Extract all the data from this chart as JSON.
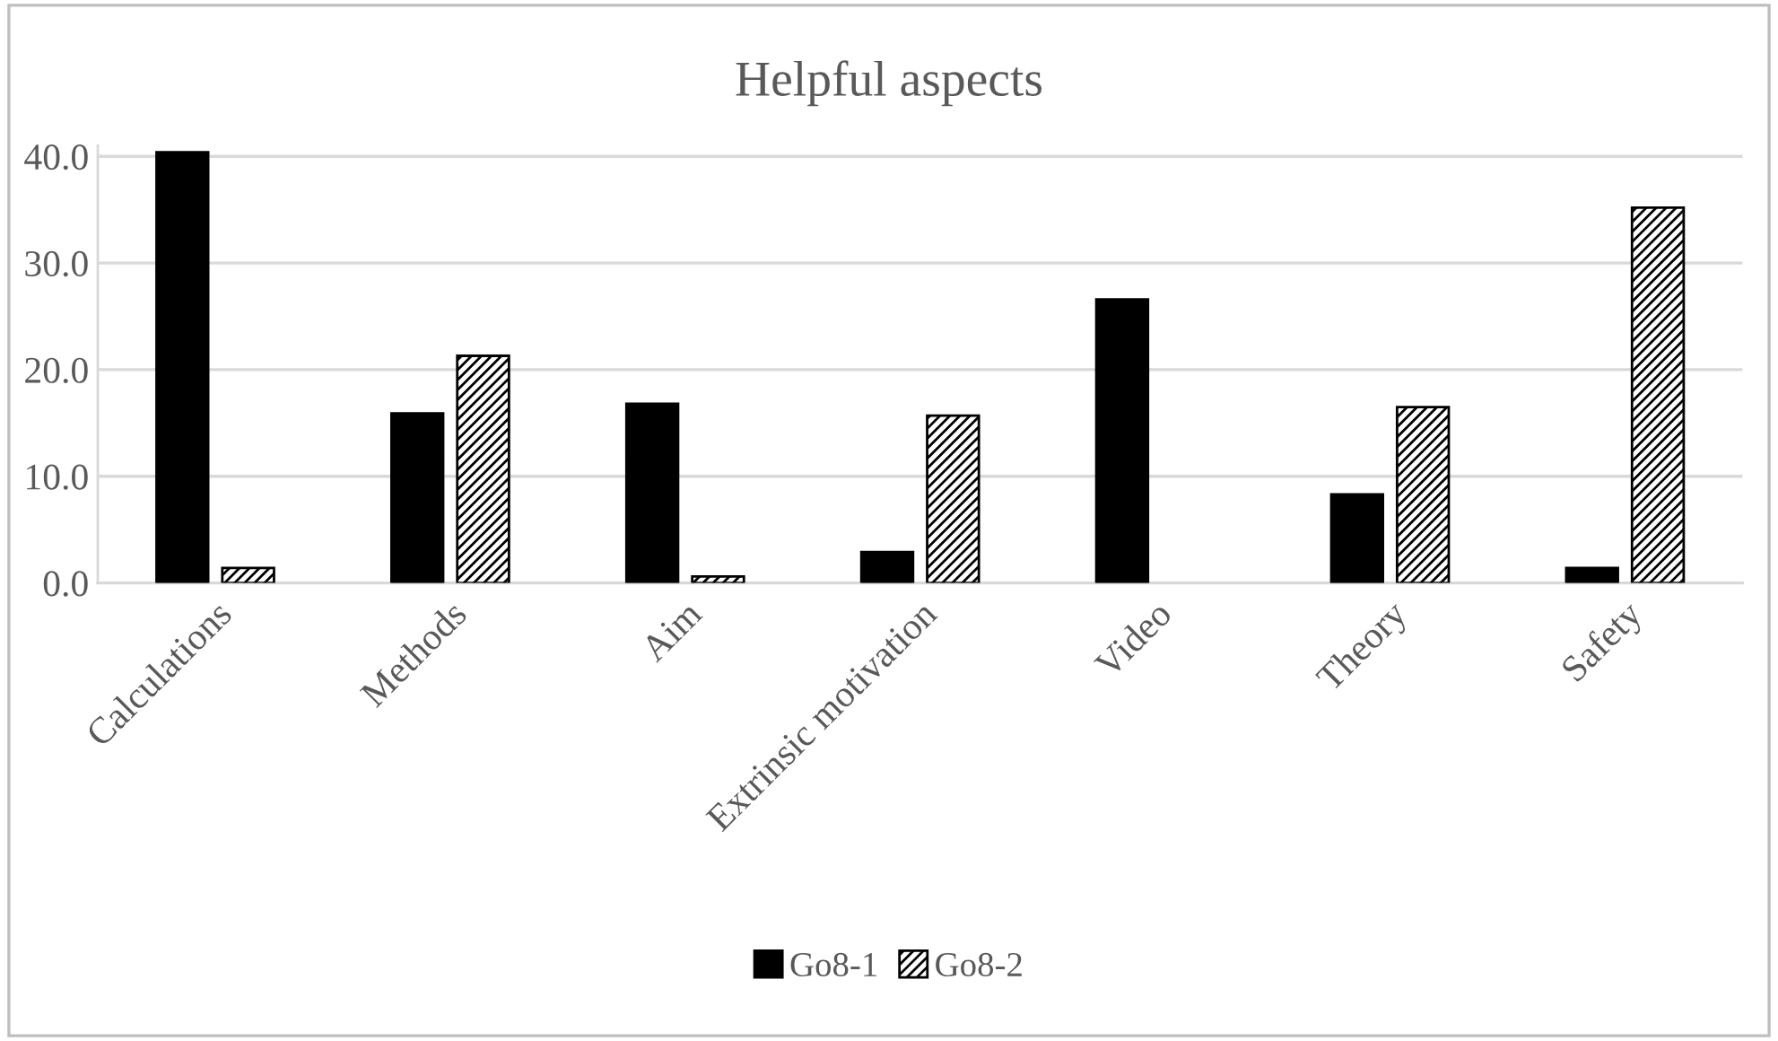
{
  "chart_data": {
    "type": "bar",
    "title": "Helpful aspects",
    "categories": [
      "Calculations",
      "Methods",
      "Aim",
      "Extrinsic motivation",
      "Video",
      "Theory",
      "Safety"
    ],
    "series": [
      {
        "name": "Go8-1",
        "color": "#000000",
        "values": [
          40.4,
          15.9,
          16.8,
          2.9,
          26.6,
          8.3,
          1.4
        ]
      },
      {
        "name": "Go8-2",
        "color": "#000000",
        "values": [
          1.4,
          21.3,
          0.6,
          15.7,
          null,
          16.5,
          35.2
        ]
      }
    ],
    "ylim": [
      0,
      41
    ],
    "yticks": [
      {
        "value": 0,
        "label": "0.0"
      },
      {
        "value": 10,
        "label": "10.0"
      },
      {
        "value": 20,
        "label": "20.0"
      },
      {
        "value": 30,
        "label": "30.0"
      },
      {
        "value": 40,
        "label": "40.0"
      }
    ],
    "grid": "y",
    "legend": "bottom"
  }
}
